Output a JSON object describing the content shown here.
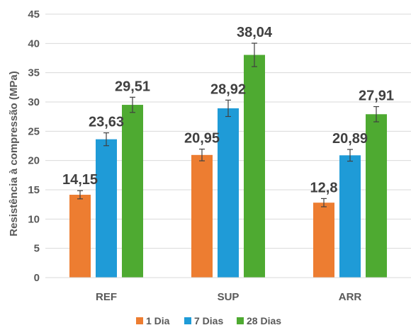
{
  "chart_data": {
    "type": "bar",
    "categories": [
      "REF",
      "SUP",
      "ARR"
    ],
    "series": [
      {
        "name": "1 Dia",
        "color": "#ED7D31",
        "values": [
          14.15,
          20.95,
          12.8
        ],
        "labels": [
          "14,15",
          "20,95",
          "12,8"
        ],
        "errors": [
          0.7,
          1.0,
          0.7
        ]
      },
      {
        "name": "7 Dias",
        "color": "#1F9BD7",
        "values": [
          23.63,
          28.92,
          20.89
        ],
        "labels": [
          "23,63",
          "28,92",
          "20,89"
        ],
        "errors": [
          1.1,
          1.4,
          1.0
        ]
      },
      {
        "name": "28 Dias",
        "color": "#4EAA31",
        "values": [
          29.51,
          38.04,
          27.91
        ],
        "labels": [
          "29,51",
          "38,04",
          "27,91"
        ],
        "errors": [
          1.3,
          2.0,
          1.3
        ]
      }
    ],
    "ylabel": "Resistência à compressão (MPa)",
    "xlabel": "",
    "ylim": [
      0,
      45
    ],
    "yticks": [
      0,
      5,
      10,
      15,
      20,
      25,
      30,
      35,
      40,
      45
    ],
    "grid": true,
    "legend": "bottom"
  }
}
